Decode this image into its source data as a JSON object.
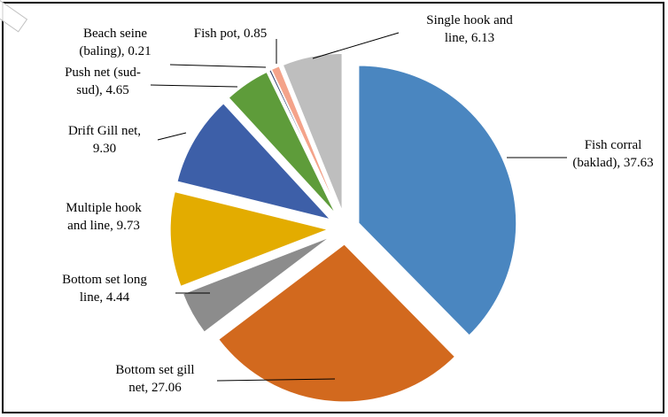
{
  "chart_data": {
    "type": "pie",
    "title": "",
    "slices": [
      {
        "label": "Fish corral (baklad)",
        "text_lines": [
          "Fish corral",
          "(baklad), 37.63"
        ],
        "value": 37.63,
        "color": "#4A86C0"
      },
      {
        "label": "Bottom set gill net",
        "text_lines": [
          "Bottom set gill",
          "net, 27.06"
        ],
        "value": 27.06,
        "color": "#D2691E"
      },
      {
        "label": "Bottom set long line",
        "text_lines": [
          "Bottom set long",
          "line, 4.44"
        ],
        "value": 4.44,
        "color": "#8C8C8C"
      },
      {
        "label": "Multiple hook and line",
        "text_lines": [
          "Multiple hook",
          "and line, 9.73"
        ],
        "value": 9.73,
        "color": "#E3AC00"
      },
      {
        "label": "Drift Gill net",
        "text_lines": [
          "Drift Gill net,",
          "9.30"
        ],
        "value": 9.3,
        "color": "#3D5FA8"
      },
      {
        "label": "Push net (sud-sud)",
        "text_lines": [
          "Push net (sud-",
          "sud), 4.65"
        ],
        "value": 4.65,
        "color": "#5E9C3A"
      },
      {
        "label": "Beach seine (baling)",
        "text_lines": [
          "Beach seine",
          "(baling), 0.21"
        ],
        "value": 0.21,
        "color": "#2F3F6B"
      },
      {
        "label": "Fish pot",
        "text_lines": [
          "Fish pot, 0.85"
        ],
        "value": 0.85,
        "color": "#F4A38A"
      },
      {
        "label": "Single hook and line",
        "text_lines": [
          "Single hook and",
          "line, 6.13"
        ],
        "value": 6.13,
        "color": "#BEBEBE"
      }
    ]
  }
}
